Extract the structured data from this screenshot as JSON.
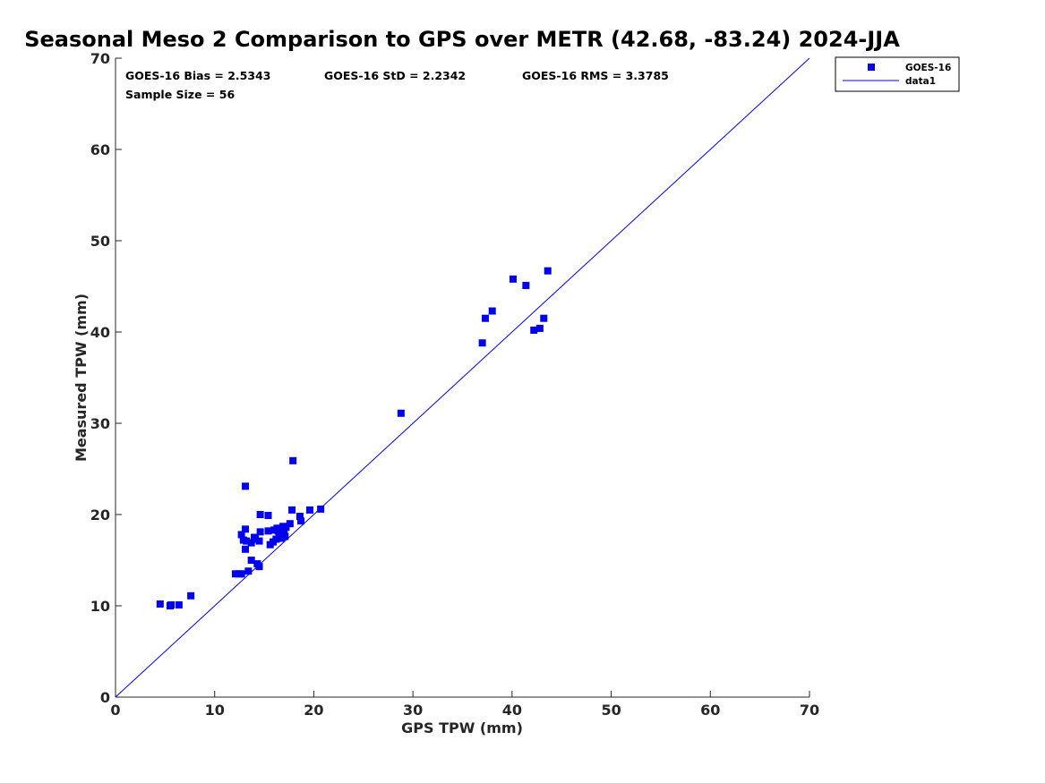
{
  "chart_data": {
    "type": "scatter",
    "title": "Seasonal Meso 2 Comparison to GPS over METR (42.68, -83.24) 2024-JJA",
    "xlabel": "GPS TPW (mm)",
    "ylabel": "Measured TPW (mm)",
    "xlim": [
      0,
      70
    ],
    "ylim": [
      0,
      70
    ],
    "xticks": [
      "0",
      "10",
      "20",
      "30",
      "40",
      "50",
      "60",
      "70"
    ],
    "yticks": [
      "0",
      "10",
      "20",
      "30",
      "40",
      "50",
      "60",
      "70"
    ],
    "grid": false,
    "legend_position": "outside top-right",
    "stats": {
      "bias": "GOES-16 Bias = 2.5343",
      "std": "GOES-16 StD = 2.2342",
      "rms": "GOES-16 RMS = 3.3785",
      "sample": "Sample Size = 56"
    },
    "series": [
      {
        "name": "GOES-16",
        "kind": "marker",
        "color": "#0000ee",
        "points": [
          [
            4.5,
            10.2
          ],
          [
            5.5,
            10.0
          ],
          [
            5.6,
            10.1
          ],
          [
            6.4,
            10.1
          ],
          [
            7.6,
            11.1
          ],
          [
            12.1,
            13.5
          ],
          [
            12.5,
            13.5
          ],
          [
            12.7,
            13.5
          ],
          [
            13.4,
            13.8
          ],
          [
            13.7,
            15.0
          ],
          [
            14.3,
            14.6
          ],
          [
            14.5,
            14.3
          ],
          [
            12.7,
            17.8
          ],
          [
            12.9,
            17.2
          ],
          [
            13.1,
            18.4
          ],
          [
            13.1,
            16.2
          ],
          [
            13.2,
            17.1
          ],
          [
            13.7,
            16.9
          ],
          [
            14.0,
            17.5
          ],
          [
            14.5,
            17.1
          ],
          [
            14.6,
            18.1
          ],
          [
            14.6,
            20.0
          ],
          [
            15.4,
            19.9
          ],
          [
            15.4,
            18.2
          ],
          [
            15.6,
            16.7
          ],
          [
            16.0,
            18.3
          ],
          [
            16.2,
            17.3
          ],
          [
            16.4,
            18.2
          ],
          [
            16.5,
            17.8
          ],
          [
            16.7,
            17.4
          ],
          [
            16.8,
            18.1
          ],
          [
            16.9,
            18.7
          ],
          [
            17.0,
            18.0
          ],
          [
            17.1,
            17.6
          ],
          [
            17.2,
            18.6
          ],
          [
            17.6,
            19.0
          ],
          [
            17.8,
            20.5
          ],
          [
            18.6,
            19.8
          ],
          [
            18.7,
            19.3
          ],
          [
            19.6,
            20.5
          ],
          [
            20.7,
            20.6
          ],
          [
            13.1,
            23.1
          ],
          [
            17.9,
            25.9
          ],
          [
            28.8,
            31.1
          ],
          [
            37.0,
            38.8
          ],
          [
            37.3,
            41.5
          ],
          [
            38.0,
            42.3
          ],
          [
            40.1,
            45.8
          ],
          [
            41.4,
            45.1
          ],
          [
            42.2,
            40.2
          ],
          [
            42.8,
            40.4
          ],
          [
            43.2,
            41.5
          ],
          [
            43.6,
            46.7
          ],
          [
            14.1,
            17.3
          ],
          [
            15.9,
            17.0
          ],
          [
            16.3,
            18.5
          ]
        ]
      },
      {
        "name": "data1",
        "kind": "line",
        "color": "#0000ee",
        "points": [
          [
            0,
            0
          ],
          [
            70,
            70
          ]
        ]
      }
    ]
  }
}
